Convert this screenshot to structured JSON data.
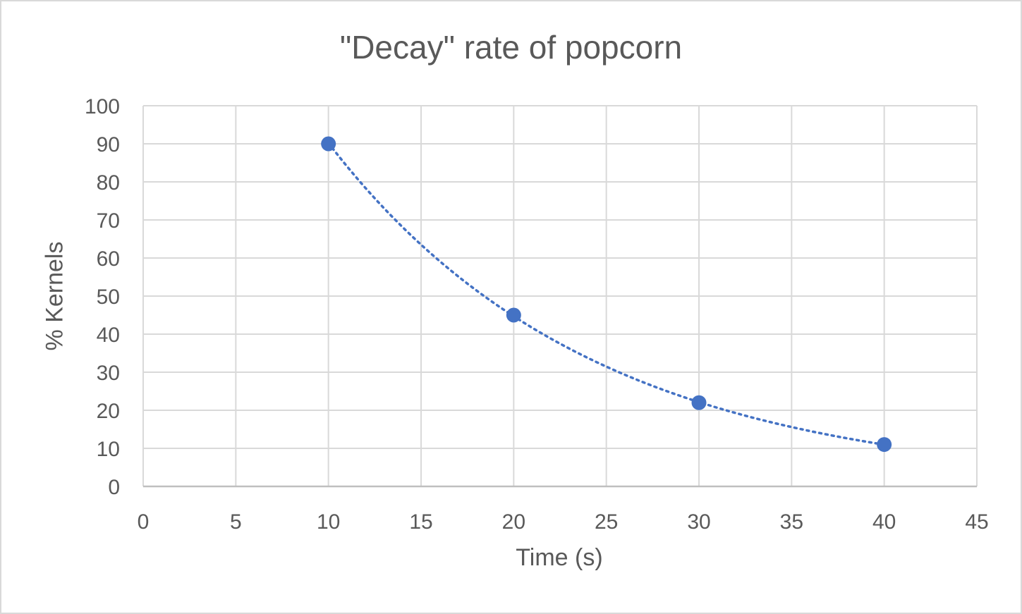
{
  "chart_data": {
    "type": "scatter",
    "title": "\"Decay\" rate of popcorn",
    "xlabel": "Time (s)",
    "ylabel": "% Kernels",
    "xlim": [
      0,
      45
    ],
    "ylim": [
      0,
      100
    ],
    "x_ticks": [
      0,
      5,
      10,
      15,
      20,
      25,
      30,
      35,
      40,
      45
    ],
    "y_ticks": [
      0,
      10,
      20,
      30,
      40,
      50,
      60,
      70,
      80,
      90,
      100
    ],
    "grid": true,
    "legend": "none",
    "series": [
      {
        "x": [
          10,
          20,
          30,
          40
        ],
        "y": [
          90,
          45,
          22,
          11
        ],
        "color": "#4472c4",
        "marker": "circle",
        "trendline": "exponential",
        "trendline_style": "dotted"
      }
    ]
  }
}
